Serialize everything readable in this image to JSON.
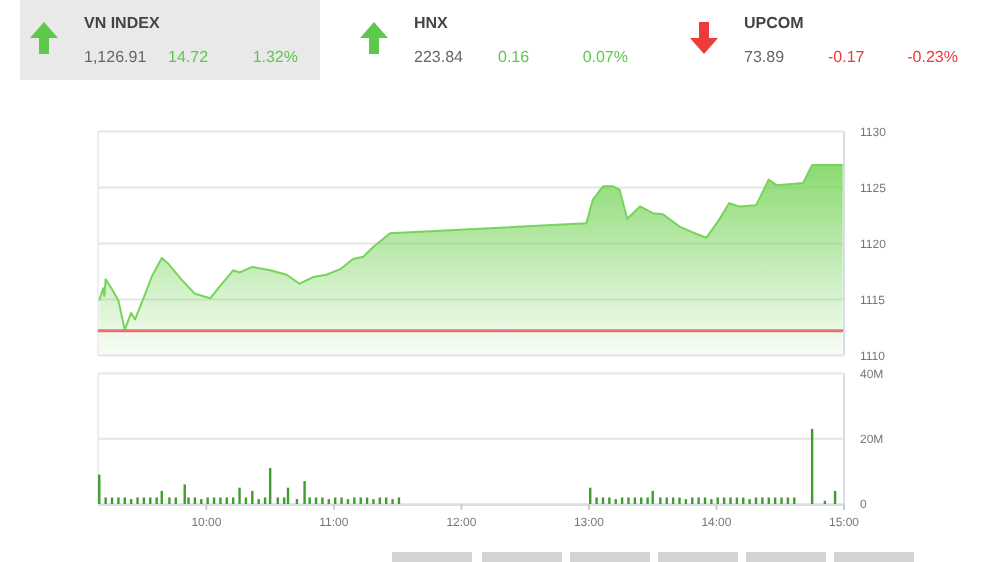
{
  "chart_data": [
    {
      "type": "other",
      "annotations": [
        "VN INDEX",
        "1,126.91",
        "14.72",
        "1.32%",
        "HNX",
        "223.84",
        "0.16",
        "0.07%",
        "UPCOM",
        "73.89",
        "-0.17",
        "-0.23%"
      ]
    },
    {
      "type": "area",
      "xlim": [
        9.15,
        15
      ],
      "ylim": [
        1110,
        1130
      ],
      "yticks": [
        1110,
        1115,
        1120,
        1125,
        1130
      ],
      "grid": "y",
      "tick_labels": "y",
      "ref_lines": [
        {
          "axis": "y",
          "value": 1112.2,
          "color": "#e87070"
        }
      ],
      "series": [
        {
          "color": "#77d45a",
          "x": [
            9.16,
            9.19,
            9.2,
            9.21,
            9.26,
            9.31,
            9.36,
            9.41,
            9.44,
            9.52,
            9.57,
            9.65,
            9.7,
            9.81,
            9.91,
            10.03,
            10.1,
            10.21,
            10.26,
            10.36,
            10.5,
            10.63,
            10.73,
            10.84,
            10.94,
            11.05,
            11.15,
            11.23,
            11.31,
            11.44,
            12.98,
            13.03,
            13.11,
            13.19,
            13.24,
            13.3,
            13.4,
            13.5,
            13.58,
            13.71,
            13.81,
            13.92,
            14.02,
            14.1,
            14.18,
            14.31,
            14.41,
            14.47,
            14.68,
            14.75,
            14.99
          ],
          "values": [
            1114.9,
            1116,
            1115.3,
            1116.8,
            1115.9,
            1114.9,
            1112.3,
            1113.8,
            1113.2,
            1115.5,
            1117,
            1118.7,
            1118.2,
            1116.7,
            1115.5,
            1115.1,
            1116.1,
            1117.6,
            1117.4,
            1117.9,
            1117.6,
            1117.2,
            1116.4,
            1117,
            1117.2,
            1117.7,
            1118.6,
            1118.8,
            1119.7,
            1120.9,
            1121.8,
            1123.9,
            1125.1,
            1125.1,
            1124.8,
            1122.2,
            1123.3,
            1122.7,
            1122.6,
            1121.5,
            1121,
            1120.5,
            1122.1,
            1123.6,
            1123.3,
            1123.4,
            1125.7,
            1125.2,
            1125.4,
            1127,
            1127
          ]
        }
      ]
    },
    {
      "type": "bar",
      "xlim": [
        9.15,
        15
      ],
      "xticks": [
        {
          "value": 10,
          "label": "10:00"
        },
        {
          "value": 11,
          "label": "11:00"
        },
        {
          "value": 12,
          "label": "12:00"
        },
        {
          "value": 13,
          "label": "13:00"
        },
        {
          "value": 14,
          "label": "14:00"
        },
        {
          "value": 15,
          "label": "15:00"
        }
      ],
      "ylim": [
        0,
        40
      ],
      "yticks": [
        {
          "value": 0,
          "label": "0"
        },
        {
          "value": 20,
          "label": "20M"
        },
        {
          "value": 40,
          "label": "40M"
        }
      ],
      "grid": "y",
      "series": [
        {
          "color": "#3d9e2e",
          "x": [
            9.16,
            9.21,
            9.26,
            9.31,
            9.36,
            9.41,
            9.46,
            9.51,
            9.56,
            9.61,
            9.65,
            9.71,
            9.76,
            9.83,
            9.86,
            9.91,
            9.96,
            10.01,
            10.06,
            10.11,
            10.16,
            10.21,
            10.26,
            10.31,
            10.36,
            10.41,
            10.46,
            10.5,
            10.56,
            10.61,
            10.64,
            10.71,
            10.77,
            10.81,
            10.86,
            10.91,
            10.96,
            11.01,
            11.06,
            11.11,
            11.16,
            11.21,
            11.26,
            11.31,
            11.36,
            11.41,
            11.46,
            11.51,
            13.01,
            13.06,
            13.11,
            13.16,
            13.21,
            13.26,
            13.31,
            13.36,
            13.41,
            13.46,
            13.5,
            13.56,
            13.61,
            13.66,
            13.71,
            13.76,
            13.81,
            13.86,
            13.91,
            13.96,
            14.01,
            14.06,
            14.11,
            14.16,
            14.21,
            14.26,
            14.31,
            14.36,
            14.41,
            14.46,
            14.51,
            14.56,
            14.61,
            14.75,
            14.85,
            14.93
          ],
          "values": [
            9,
            2,
            2,
            2,
            2,
            1.5,
            2,
            2,
            2,
            2,
            4,
            2,
            2,
            6,
            2,
            2,
            1.5,
            2,
            2,
            2,
            2,
            2,
            5,
            2,
            4,
            1.5,
            2,
            11,
            2,
            2,
            5,
            1.5,
            7,
            2,
            2,
            2,
            1.5,
            2,
            2,
            1.5,
            2,
            2,
            2,
            1.5,
            2,
            2,
            1.5,
            2,
            5,
            2,
            2,
            2,
            1.5,
            2,
            2,
            2,
            2,
            2,
            4,
            2,
            2,
            2,
            2,
            1.5,
            2,
            2,
            2,
            1.5,
            2,
            2,
            2,
            2,
            2,
            1.5,
            2,
            2,
            2,
            2,
            2,
            2,
            2,
            23,
            1,
            4
          ]
        }
      ]
    }
  ]
}
